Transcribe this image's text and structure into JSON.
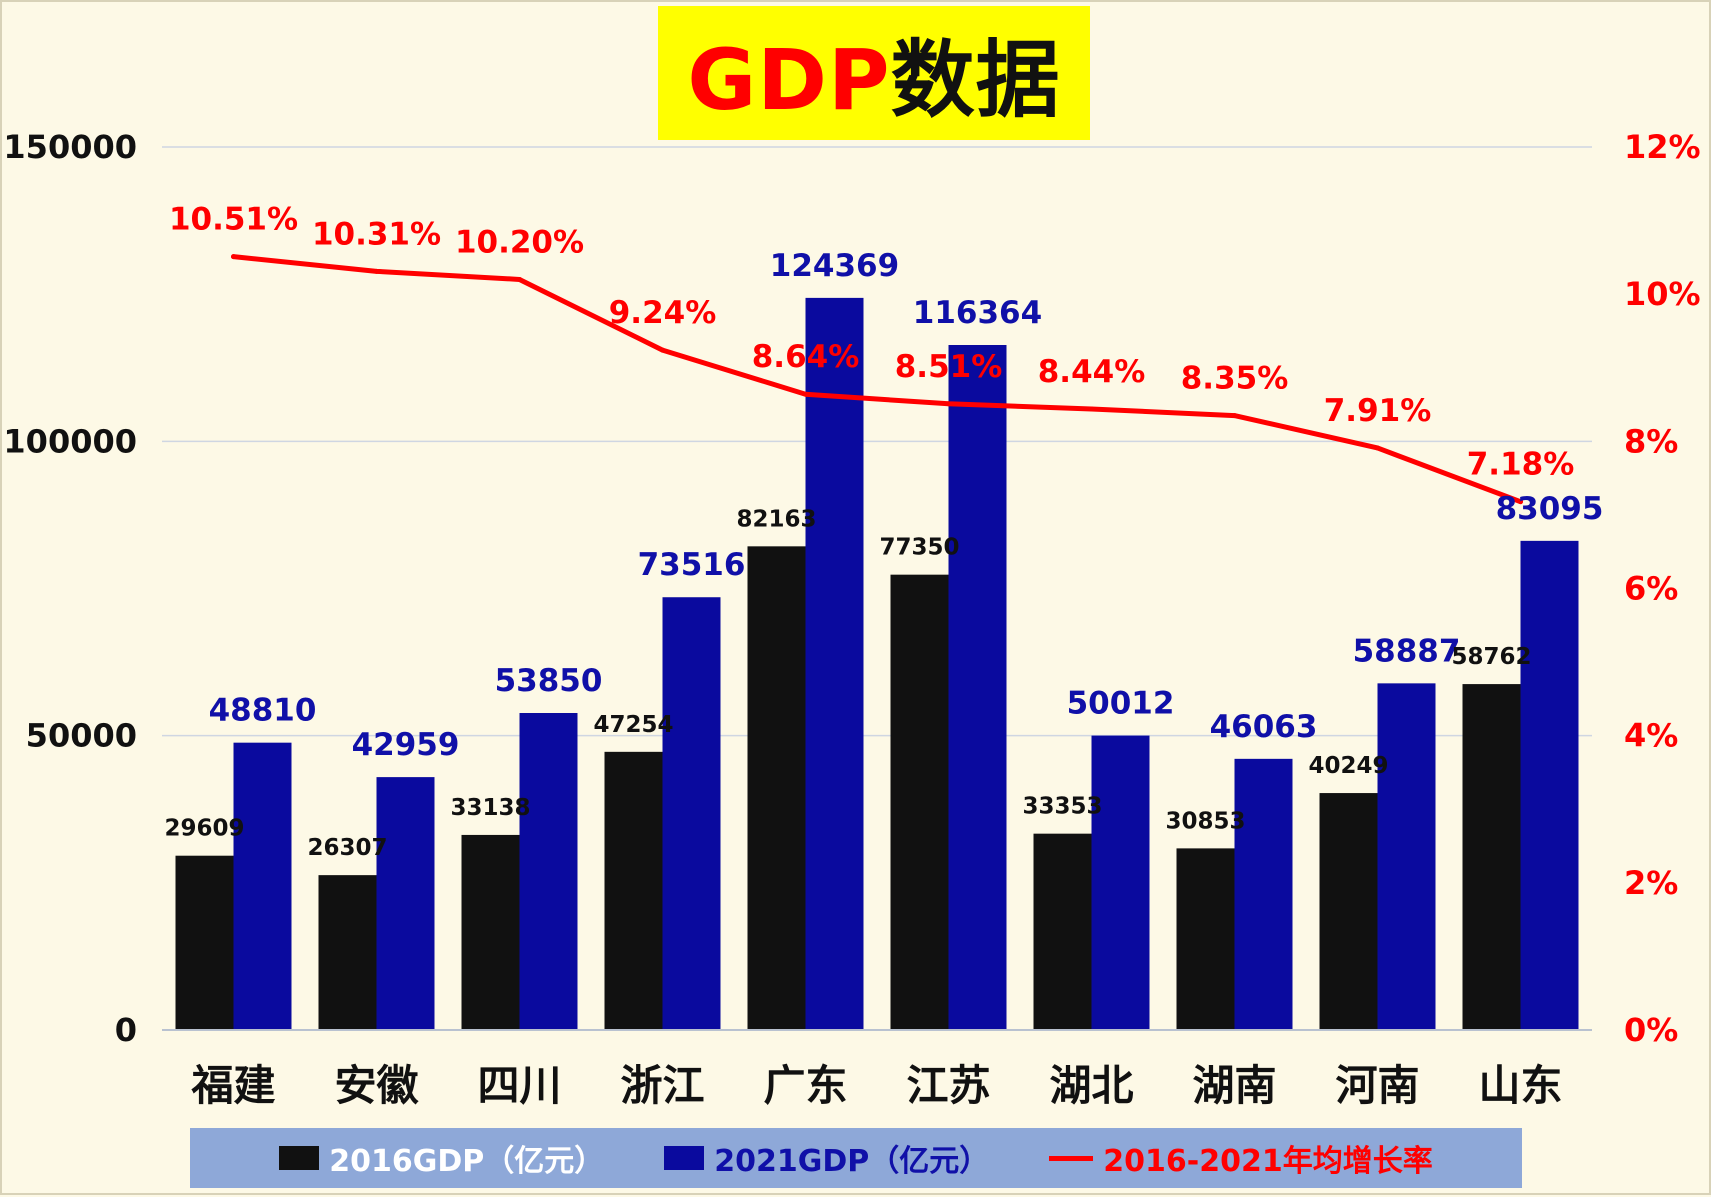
{
  "title": {
    "latin": "GDP",
    "cjk": "数据"
  },
  "colors": {
    "bar_2016": "#111111",
    "bar_2021": "#0a0a9e",
    "line": "#ff0000",
    "label_2021": "#1010a8",
    "label_rate": "#ff0000",
    "title_bg": "#ffff00",
    "legend_bg": "#8ea8d8",
    "grid": "#cfd6e2"
  },
  "chart_data": {
    "type": "bar",
    "categories": [
      "福建",
      "安徽",
      "四川",
      "浙江",
      "广东",
      "江苏",
      "湖北",
      "湖南",
      "河南",
      "山东"
    ],
    "series": [
      {
        "name": "2016GDP（亿元）",
        "kind": "bar",
        "axis": "left",
        "values": [
          29609,
          26307,
          33138,
          47254,
          82163,
          77350,
          33353,
          30853,
          40249,
          58762
        ]
      },
      {
        "name": "2021GDP（亿元）",
        "kind": "bar",
        "axis": "left",
        "values": [
          48810,
          42959,
          53850,
          73516,
          124369,
          116364,
          50012,
          46063,
          58887,
          83095
        ]
      },
      {
        "name": "2016-2021年均增长率",
        "kind": "line",
        "axis": "right",
        "values": [
          10.51,
          10.31,
          10.2,
          9.24,
          8.64,
          8.51,
          8.44,
          8.35,
          7.91,
          7.18
        ],
        "labels": [
          "10.51%",
          "10.31%",
          "10.20%",
          "9.24%",
          "8.64%",
          "8.51%",
          "8.44%",
          "8.35%",
          "7.91%",
          "7.18%"
        ]
      }
    ],
    "y_left": {
      "min": 0,
      "max": 150000,
      "ticks": [
        "0",
        "50000",
        "100000",
        "150000"
      ]
    },
    "y_right": {
      "min": 0,
      "max": 12,
      "ticks": [
        "0%",
        "2%",
        "4%",
        "6%",
        "8%",
        "10%",
        "12%"
      ]
    },
    "grid": true,
    "legend_position": "bottom"
  }
}
